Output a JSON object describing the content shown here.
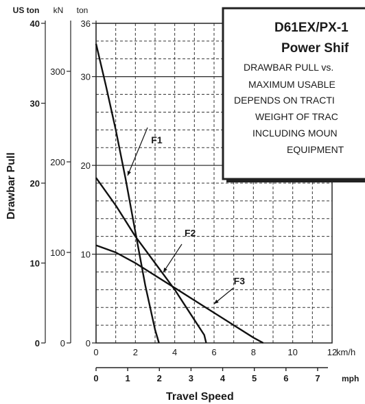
{
  "chart_data": {
    "type": "line",
    "title": "D61EX/PX-1",
    "subtitle": "Power Shif",
    "info_lines": [
      "DRAWBAR PULL vs.",
      "MAXIMUM USABLE",
      "DEPENDS ON TRACTI",
      "WEIGHT OF TRAC",
      "INCLUDING MOUN",
      "EQUIPMENT"
    ],
    "ylabel": "Drawbar Pull",
    "xlabel": "Travel Speed",
    "y_axes": [
      {
        "unit": "US ton",
        "ticks": [
          {
            "v": 0,
            "t": "0"
          },
          {
            "v": 10,
            "t": "10"
          },
          {
            "v": 20,
            "t": "20"
          },
          {
            "v": 30,
            "t": "30"
          },
          {
            "v": 40,
            "t": "40"
          }
        ]
      },
      {
        "unit": "kN",
        "ticks": [
          {
            "v": 0,
            "t": "0"
          },
          {
            "v": 100,
            "t": "100"
          },
          {
            "v": 200,
            "t": "200"
          },
          {
            "v": 300,
            "t": "300"
          }
        ]
      },
      {
        "unit": "ton",
        "ticks": [
          {
            "v": 0,
            "t": "0"
          },
          {
            "v": 10,
            "t": "10"
          },
          {
            "v": 20,
            "t": "20"
          },
          {
            "v": 30,
            "t": "30"
          },
          {
            "v": 36,
            "t": "36"
          }
        ]
      }
    ],
    "x_axes": [
      {
        "unit": "km/h",
        "ticks": [
          {
            "v": 0,
            "t": "0"
          },
          {
            "v": 2,
            "t": "2"
          },
          {
            "v": 4,
            "t": "4"
          },
          {
            "v": 6,
            "t": "6"
          },
          {
            "v": 8,
            "t": "8"
          },
          {
            "v": 10,
            "t": "10"
          },
          {
            "v": 12,
            "t": "12"
          }
        ]
      },
      {
        "unit": "mph",
        "ticks": [
          {
            "v": 0,
            "t": "0"
          },
          {
            "v": 1,
            "t": "1"
          },
          {
            "v": 2,
            "t": "2"
          },
          {
            "v": 3,
            "t": "3"
          },
          {
            "v": 4,
            "t": "4"
          },
          {
            "v": 5,
            "t": "5"
          },
          {
            "v": 6,
            "t": "6"
          },
          {
            "v": 7,
            "t": "7"
          }
        ]
      }
    ],
    "xlim": [
      0,
      12
    ],
    "ylim": [
      0,
      36
    ],
    "series": [
      {
        "name": "F1",
        "label_at": [
          2.8,
          22.5
        ],
        "points": [
          [
            0,
            33.7
          ],
          [
            0.5,
            29.0
          ],
          [
            1.0,
            24.0
          ],
          [
            1.5,
            18.5
          ],
          [
            2.0,
            12.5
          ],
          [
            2.5,
            6.5
          ],
          [
            3.0,
            1.5
          ],
          [
            3.2,
            0
          ]
        ]
      },
      {
        "name": "F2",
        "label_at": [
          4.5,
          12.0
        ],
        "points": [
          [
            0,
            18.6
          ],
          [
            1.0,
            15.5
          ],
          [
            2.0,
            12.0
          ],
          [
            3.0,
            9.0
          ],
          [
            4.0,
            6.0
          ],
          [
            4.5,
            4.3
          ],
          [
            5.0,
            2.6
          ],
          [
            5.5,
            0.9
          ],
          [
            5.6,
            0
          ]
        ]
      },
      {
        "name": "F3",
        "label_at": [
          7.0,
          6.6
        ],
        "points": [
          [
            0,
            11.0
          ],
          [
            1.0,
            10.2
          ],
          [
            2.0,
            9.0
          ],
          [
            3.0,
            7.6
          ],
          [
            4.0,
            6.2
          ],
          [
            5.0,
            4.8
          ],
          [
            6.0,
            3.4
          ],
          [
            7.0,
            2.0
          ],
          [
            8.0,
            0.6
          ],
          [
            8.5,
            0
          ]
        ]
      }
    ],
    "grid": true
  }
}
